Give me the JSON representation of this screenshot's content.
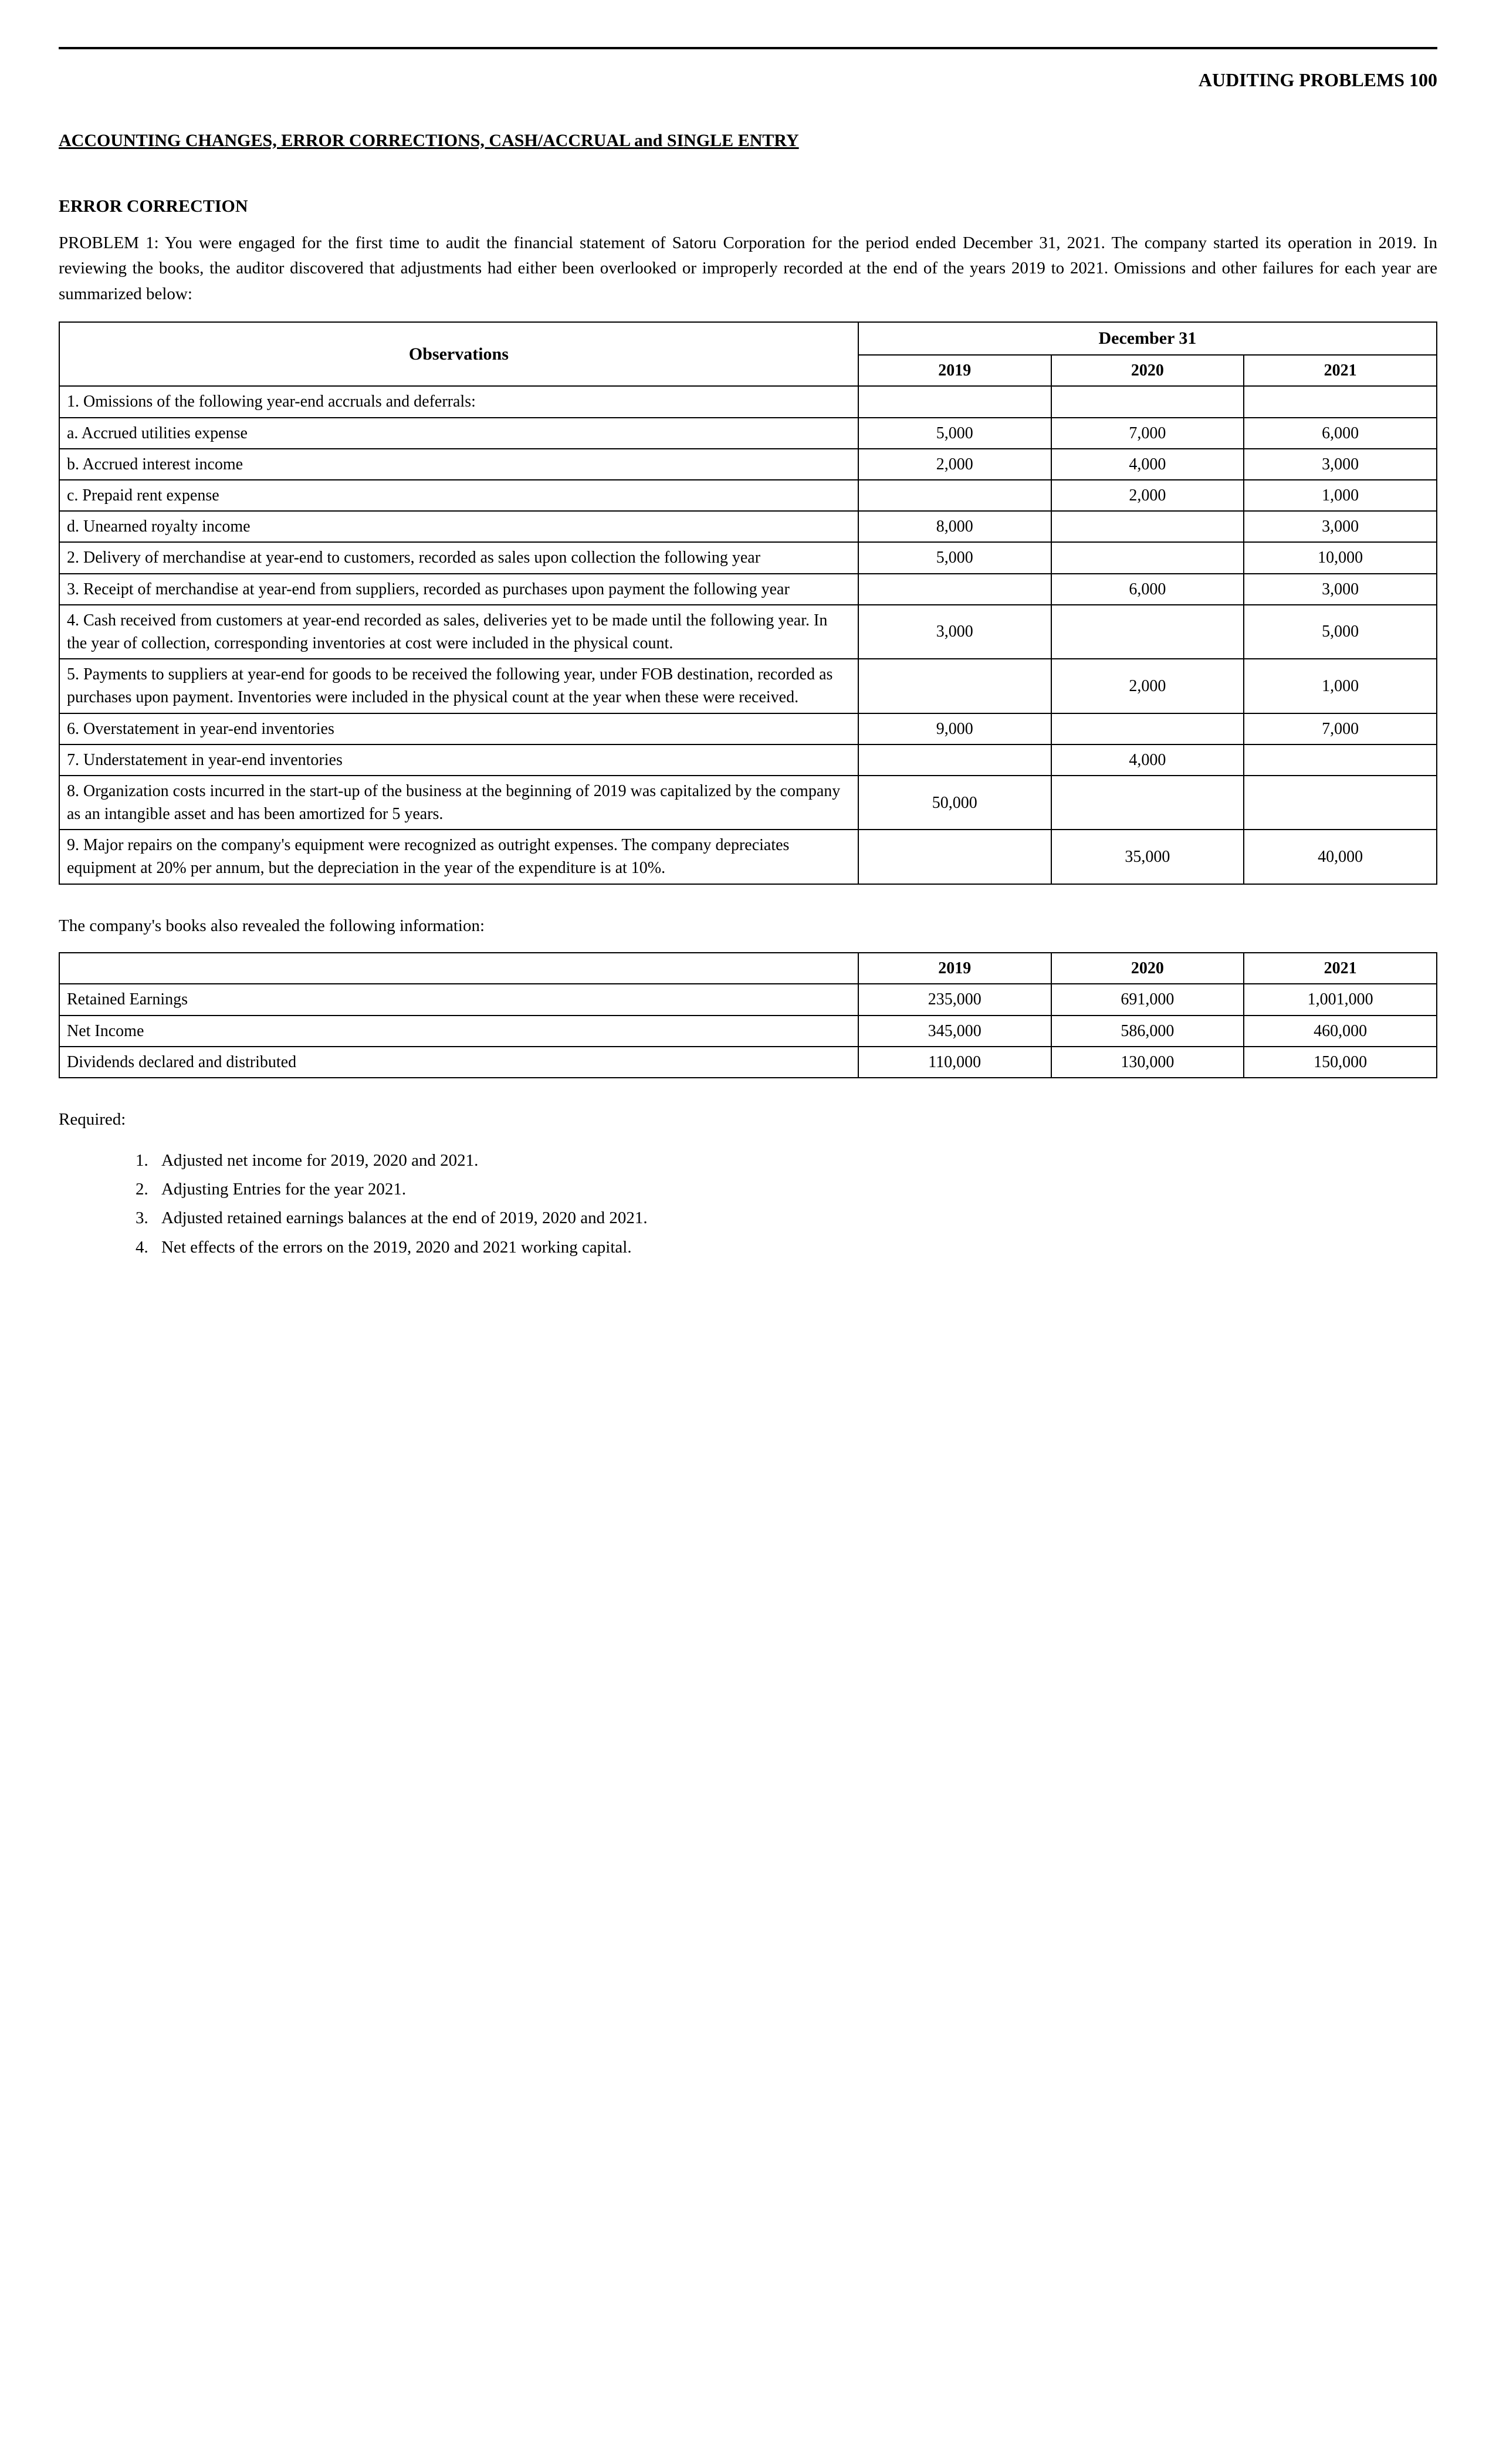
{
  "header": {
    "page_title": "AUDITING PROBLEMS 100"
  },
  "section": {
    "title": "ACCOUNTING CHANGES, ERROR CORRECTIONS, CASH/ACCRUAL and SINGLE ENTRY",
    "subsection": "ERROR CORRECTION"
  },
  "problem": {
    "text": "PROBLEM 1:   You were engaged for the first time to audit the financial statement of Satoru Corporation for the period ended December 31, 2021. The company started its operation in 2019. In reviewing the books, the auditor discovered that adjustments had either been overlooked or improperly recorded at the end of the years 2019 to 2021. Omissions and other failures for each year are summarized below:"
  },
  "observations_table": {
    "header_left": "Observations",
    "header_right": "December 31",
    "years": [
      "2019",
      "2020",
      "2021"
    ],
    "rows": [
      {
        "desc": "1. Omissions of the following year-end accruals and deferrals:",
        "vals": [
          "",
          "",
          ""
        ]
      },
      {
        "desc": "a. Accrued utilities expense",
        "vals": [
          "5,000",
          "7,000",
          "6,000"
        ]
      },
      {
        "desc": "b. Accrued interest income",
        "vals": [
          "2,000",
          "4,000",
          "3,000"
        ]
      },
      {
        "desc": "c. Prepaid rent expense",
        "vals": [
          "",
          "2,000",
          "1,000"
        ]
      },
      {
        "desc": "d. Unearned royalty income",
        "vals": [
          "8,000",
          "",
          "3,000"
        ]
      },
      {
        "desc": "2. Delivery of merchandise at year-end to customers, recorded as sales upon collection the following year",
        "vals": [
          "5,000",
          "",
          "10,000"
        ]
      },
      {
        "desc": "3. Receipt of merchandise at year-end from suppliers, recorded as purchases upon payment the following year",
        "vals": [
          "",
          "6,000",
          "3,000"
        ]
      },
      {
        "desc": "4. Cash received from customers at year-end recorded as sales, deliveries yet to be made until the following year. In the year of collection, corresponding inventories at cost were included in the physical count.",
        "vals": [
          "3,000",
          "",
          "5,000"
        ]
      },
      {
        "desc": "5. Payments to suppliers at year-end for goods to be received the following year, under FOB destination, recorded as purchases upon payment. Inventories were included in the physical count at the year when these were received.",
        "vals": [
          "",
          "2,000",
          "1,000"
        ]
      },
      {
        "desc": "6. Overstatement in year-end inventories",
        "vals": [
          "9,000",
          "",
          "7,000"
        ]
      },
      {
        "desc": "7. Understatement in year-end inventories",
        "vals": [
          "",
          "4,000",
          ""
        ]
      },
      {
        "desc": "8. Organization costs incurred in the start-up of the business at the beginning of 2019 was capitalized by the company as an intangible asset and has been amortized for 5 years.",
        "vals": [
          "50,000",
          "",
          ""
        ]
      },
      {
        "desc": "9. Major repairs on the company's equipment were recognized as outright expenses. The company depreciates equipment at 20% per annum, but the depreciation in the year of the expenditure is at 10%.",
        "vals": [
          "",
          "35,000",
          "40,000"
        ]
      }
    ]
  },
  "info_text": "The company's books also revealed the following information:",
  "books_table": {
    "years": [
      "2019",
      "2020",
      "2021"
    ],
    "rows": [
      {
        "desc": "Retained Earnings",
        "vals": [
          "235,000",
          "691,000",
          "1,001,000"
        ]
      },
      {
        "desc": "Net Income",
        "vals": [
          "345,000",
          "586,000",
          "460,000"
        ]
      },
      {
        "desc": "Dividends declared and distributed",
        "vals": [
          "110,000",
          "130,000",
          "150,000"
        ]
      }
    ]
  },
  "required": {
    "label": "Required:",
    "items": [
      "Adjusted net income for 2019, 2020 and 2021.",
      "Adjusting Entries for the year 2021.",
      "Adjusted retained earnings balances at the end of 2019, 2020 and 2021.",
      "Net effects of the errors on the 2019, 2020 and 2021 working capital."
    ]
  },
  "colors": {
    "text": "#000000",
    "background": "#ffffff",
    "border": "#000000"
  }
}
